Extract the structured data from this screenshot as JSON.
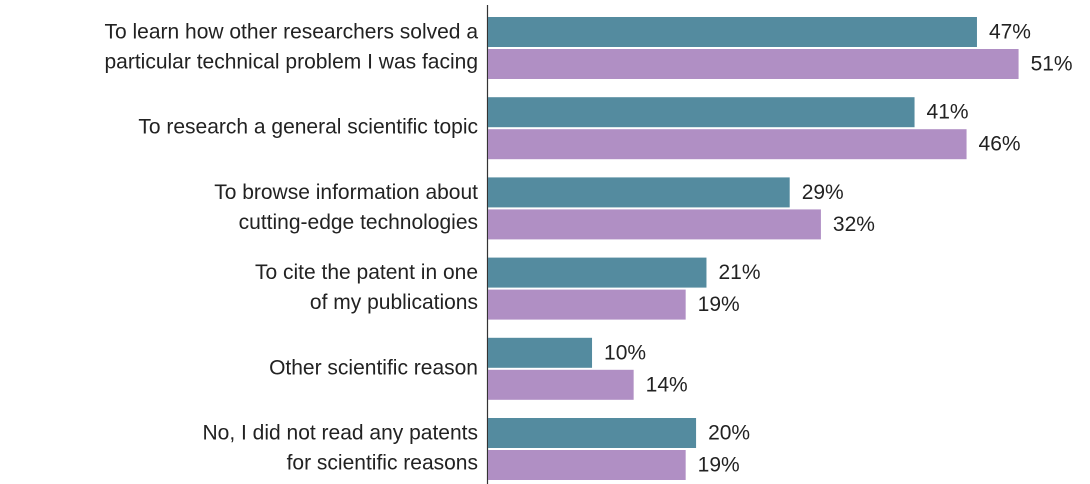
{
  "chart_data": {
    "type": "bar",
    "orientation": "horizontal",
    "categories": [
      [
        "To learn how other researchers solved a",
        "particular technical problem I was facing"
      ],
      [
        "To research a general scientific topic"
      ],
      [
        "To browse information about",
        "cutting-edge technologies"
      ],
      [
        "To cite the patent in one",
        "of my publications"
      ],
      [
        "Other scientific reason"
      ],
      [
        "No, I did not read any patents",
        "for scientific reasons"
      ]
    ],
    "series": [
      {
        "color": "#548b9f",
        "label_color": "#5e93a8",
        "values": [
          47,
          41,
          29,
          21,
          10,
          20
        ],
        "value_labels": [
          "47%",
          "41%",
          "29%",
          "21%",
          "10%",
          "20%"
        ]
      },
      {
        "color": "#b08fc4",
        "label_color": "#a867b8",
        "values": [
          51,
          46,
          32,
          19,
          14,
          19
        ],
        "value_labels": [
          "51%",
          "46%",
          "32%",
          "19%",
          "14%",
          "19%"
        ]
      }
    ],
    "xlim": [
      0,
      57
    ]
  }
}
